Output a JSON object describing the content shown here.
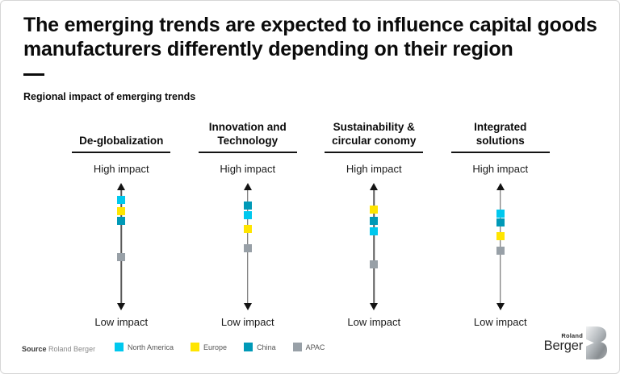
{
  "page": {
    "title": "The emerging trends are expected to influence capital goods\nmanufacturers differently depending on their region",
    "subtitle": "Regional impact of emerging trends"
  },
  "footer": {
    "source_label": "Source",
    "source_text": "Roland Berger"
  },
  "logo": {
    "line1": "Roland",
    "line2": "Berger"
  },
  "legend": [
    "North America",
    "Europe",
    "China",
    "APAC"
  ],
  "chart_data": {
    "type": "scatter",
    "title": "Regional impact of emerging trends",
    "axis_high_label": "High impact",
    "axis_low_label": "Low impact",
    "axis_note": "vertical double-headed arrow per trend; marker position = relative impact (0% = high impact end, 100% = low impact end)",
    "regions": {
      "North America": "#00C8EE",
      "Europe": "#FFE500",
      "China": "#0099B7",
      "APAC": "#98A0A7"
    },
    "columns": [
      {
        "title": "De-globalization",
        "markers": [
          {
            "region": "North America",
            "position_pct_from_high": 13
          },
          {
            "region": "Europe",
            "position_pct_from_high": 22
          },
          {
            "region": "China",
            "position_pct_from_high": 30
          },
          {
            "region": "APAC",
            "position_pct_from_high": 58
          }
        ]
      },
      {
        "title": "Innovation and\nTechnology",
        "markers": [
          {
            "region": "China",
            "position_pct_from_high": 18
          },
          {
            "region": "North America",
            "position_pct_from_high": 25
          },
          {
            "region": "Europe",
            "position_pct_from_high": 36
          },
          {
            "region": "APAC",
            "position_pct_from_high": 51
          }
        ]
      },
      {
        "title": "Sustainability &\ncircular conomy",
        "markers": [
          {
            "region": "Europe",
            "position_pct_from_high": 21
          },
          {
            "region": "China",
            "position_pct_from_high": 30
          },
          {
            "region": "North America",
            "position_pct_from_high": 38
          },
          {
            "region": "APAC",
            "position_pct_from_high": 64
          }
        ]
      },
      {
        "title": "Integrated\nsolutions",
        "markers": [
          {
            "region": "North America",
            "position_pct_from_high": 24
          },
          {
            "region": "China",
            "position_pct_from_high": 31
          },
          {
            "region": "Europe",
            "position_pct_from_high": 42
          },
          {
            "region": "APAC",
            "position_pct_from_high": 53
          }
        ]
      }
    ]
  }
}
